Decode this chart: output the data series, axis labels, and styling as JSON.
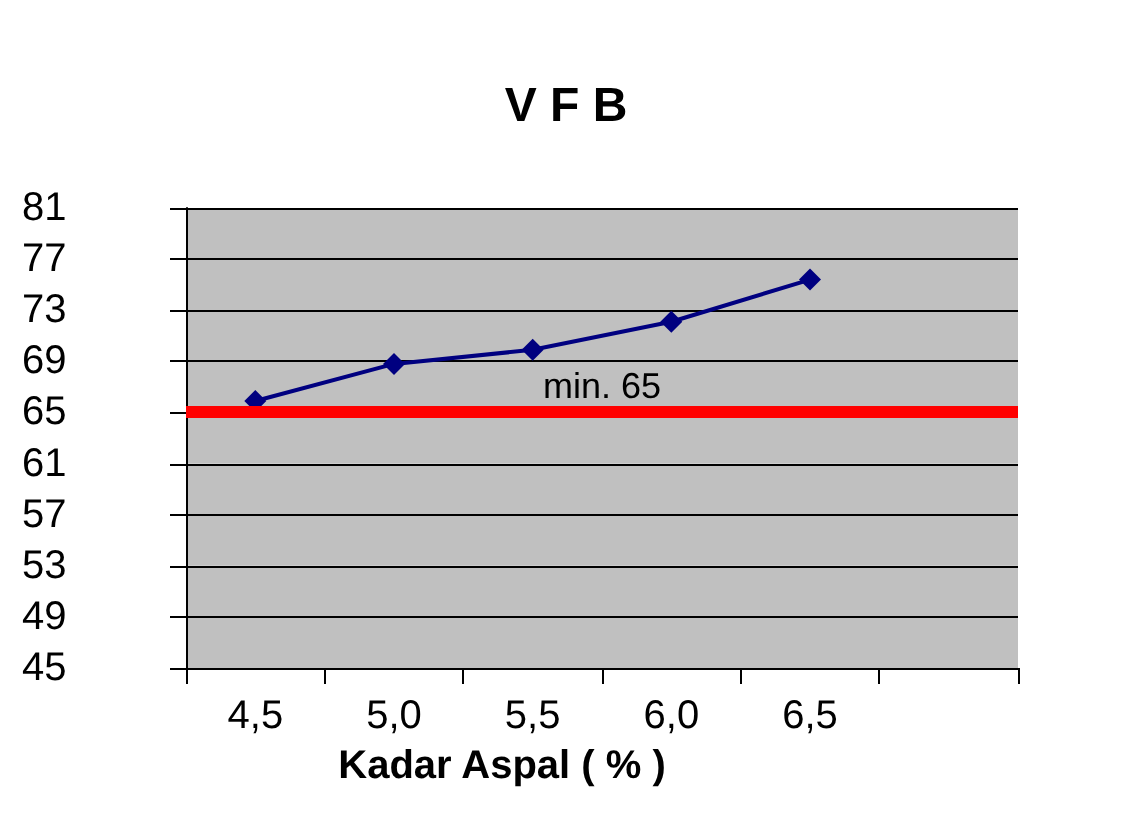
{
  "chart_data": {
    "type": "line",
    "title": "V F B",
    "xlabel": "Kadar Aspal ( % )",
    "categories": [
      "4,5",
      "5,0",
      "5,5",
      "6,0",
      "6,5",
      null
    ],
    "series": [
      {
        "color": "#000080",
        "values": [
          65.9,
          68.8,
          69.9,
          72.1,
          75.4,
          null
        ]
      }
    ],
    "ylim": [
      45,
      81
    ],
    "yticks": [
      45,
      49,
      53,
      57,
      61,
      65,
      69,
      73,
      77,
      81
    ],
    "grid": "y",
    "marker": "diamond",
    "line_style": "solid",
    "ref_lines": [
      {
        "axis": "y",
        "value": 65,
        "label": "min. 65",
        "color": "#ff0000"
      }
    ]
  }
}
